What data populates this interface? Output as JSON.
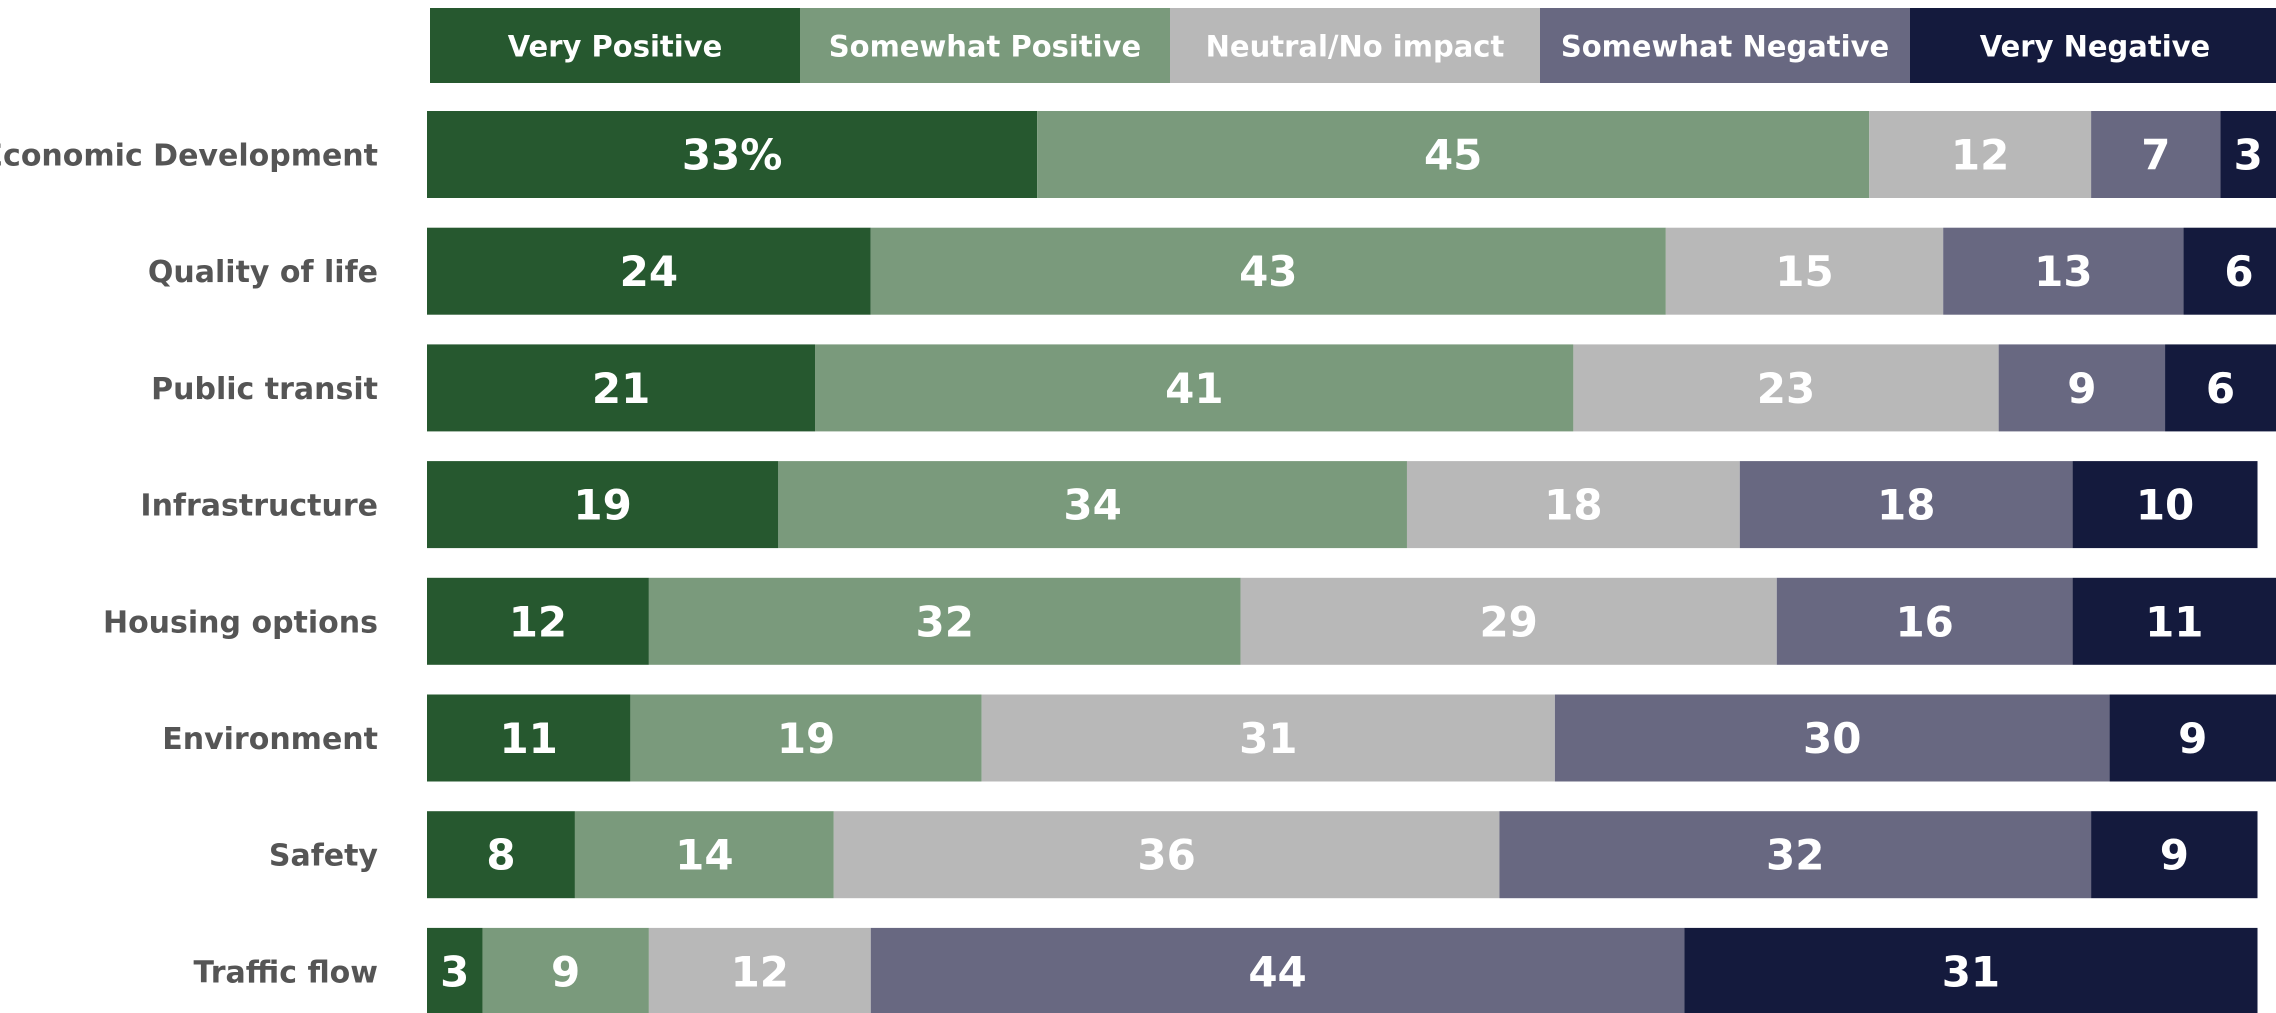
{
  "chart_data": {
    "type": "bar",
    "orientation": "horizontal",
    "stacked": true,
    "legend_position": "top",
    "grid": false,
    "xlim": [
      0,
      100
    ],
    "first_value_suffix": "%",
    "categories": [
      "Economic Development",
      "Quality of life",
      "Public transit",
      "Infrastructure",
      "Housing options",
      "Environment",
      "Safety",
      "Traffic flow"
    ],
    "series": [
      {
        "name": "Very Positive",
        "color": "#26582f",
        "values": [
          33,
          24,
          21,
          19,
          12,
          11,
          8,
          3
        ]
      },
      {
        "name": "Somewhat Positive",
        "color": "#7a9a7c",
        "values": [
          45,
          43,
          41,
          34,
          32,
          19,
          14,
          9
        ]
      },
      {
        "name": "Neutral/No impact",
        "color": "#b8b8b8",
        "values": [
          12,
          15,
          23,
          18,
          29,
          31,
          36,
          12
        ]
      },
      {
        "name": "Somewhat Negative",
        "color": "#686881",
        "values": [
          7,
          13,
          9,
          18,
          16,
          30,
          32,
          44
        ]
      },
      {
        "name": "Very Negative",
        "color": "#141a3d",
        "values": [
          3,
          6,
          6,
          10,
          11,
          9,
          9,
          31
        ]
      }
    ]
  }
}
